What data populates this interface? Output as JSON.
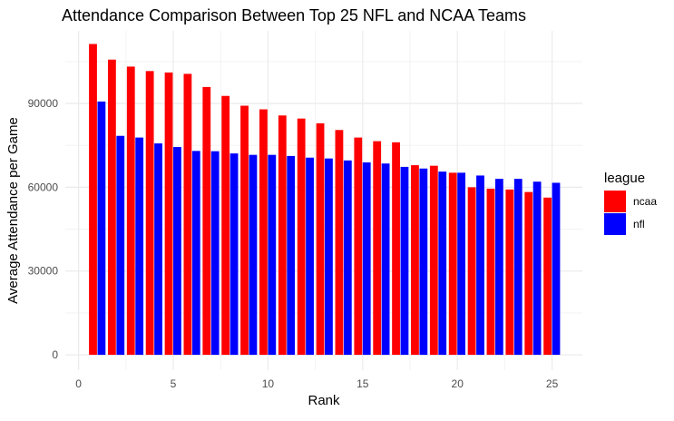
{
  "chart_data": {
    "type": "bar",
    "title": "Attendance Comparison Between Top 25 NFL and NCAA Teams",
    "xlabel": "Rank",
    "ylabel": "Average Attendance per Game",
    "x": [
      1,
      2,
      3,
      4,
      5,
      6,
      7,
      8,
      9,
      10,
      11,
      12,
      13,
      14,
      15,
      16,
      17,
      18,
      19,
      20,
      21,
      22,
      23,
      24,
      25
    ],
    "x_ticks": [
      "0",
      "5",
      "10",
      "15",
      "20",
      "25"
    ],
    "x_tick_values": [
      0,
      5,
      10,
      15,
      20,
      25
    ],
    "y_ticks": [
      "0",
      "30000",
      "60000",
      "90000"
    ],
    "y_tick_values": [
      0,
      30000,
      60000,
      90000
    ],
    "xlim": [
      -0.7,
      26.6
    ],
    "ylim": [
      -5500,
      116000
    ],
    "grid": true,
    "legend": {
      "title": "league",
      "position": "right"
    },
    "series": [
      {
        "name": "ncaa",
        "color": "#FF0000",
        "values": [
          111300,
          105700,
          103200,
          101600,
          101100,
          100600,
          95900,
          92700,
          89200,
          87900,
          85700,
          84600,
          82900,
          80500,
          77800,
          76500,
          76100,
          67900,
          67700,
          65200,
          60000,
          59500,
          59200,
          58300,
          56300
        ]
      },
      {
        "name": "nfl",
        "color": "#0000FF",
        "values": [
          90700,
          78400,
          77800,
          75700,
          74400,
          73000,
          72900,
          72100,
          71600,
          71600,
          71200,
          70600,
          70300,
          69600,
          68900,
          68500,
          67300,
          66700,
          65600,
          65200,
          64200,
          63000,
          63000,
          62000,
          61600
        ]
      }
    ]
  }
}
